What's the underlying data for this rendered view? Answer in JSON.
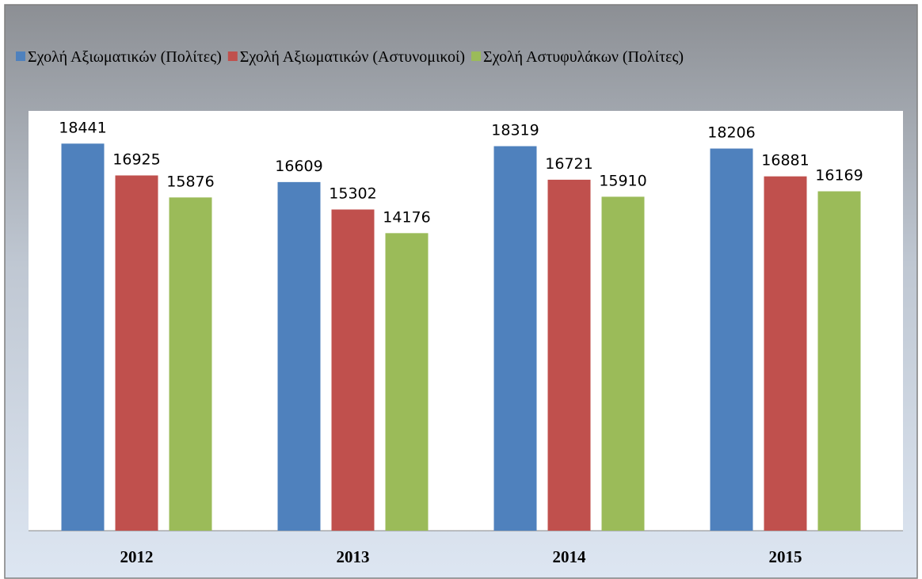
{
  "chart_data": {
    "type": "bar",
    "categories": [
      "2012",
      "2013",
      "2014",
      "2015"
    ],
    "series": [
      {
        "name": "Σχολή Αξιωματικών (Πολίτες)",
        "color": "#4f81bd",
        "values": [
          18441,
          16609,
          18319,
          18206
        ]
      },
      {
        "name": "Σχολή Αξιωματικών (Αστυνομικοί)",
        "color": "#c0504d",
        "values": [
          16925,
          15302,
          16721,
          16881
        ]
      },
      {
        "name": "Σχολή Αστυφυλάκων (Πολίτες)",
        "color": "#9bbb59",
        "values": [
          15876,
          14176,
          15910,
          16169
        ]
      }
    ],
    "ylim": [
      0,
      20000
    ],
    "legend": "top"
  }
}
